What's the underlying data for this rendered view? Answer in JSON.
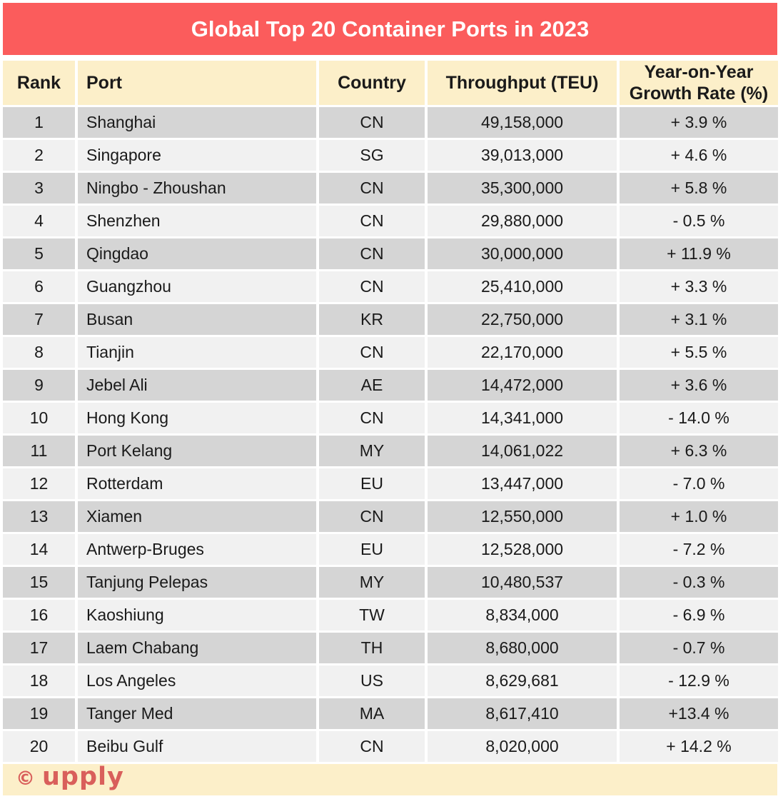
{
  "banner": {
    "title": "Global Top 20 Container Ports in 2023"
  },
  "table": {
    "header": {
      "rank": "Rank",
      "port": "Port",
      "country": "Country",
      "throughput": "Throughput (TEU)",
      "growth_line1": "Year-on-Year",
      "growth_line2": "Growth Rate (%)"
    },
    "rows": [
      {
        "rank": "1",
        "port": "Shanghai",
        "country": "CN",
        "throughput": "49,158,000",
        "growth": "+ 3.9 %"
      },
      {
        "rank": "2",
        "port": "Singapore",
        "country": "SG",
        "throughput": "39,013,000",
        "growth": "+ 4.6 %"
      },
      {
        "rank": "3",
        "port": "Ningbo - Zhoushan",
        "country": "CN",
        "throughput": "35,300,000",
        "growth": "+ 5.8 %"
      },
      {
        "rank": "4",
        "port": "Shenzhen",
        "country": "CN",
        "throughput": "29,880,000",
        "growth": "- 0.5 %"
      },
      {
        "rank": "5",
        "port": "Qingdao",
        "country": "CN",
        "throughput": "30,000,000",
        "growth": "+ 11.9 %"
      },
      {
        "rank": "6",
        "port": "Guangzhou",
        "country": "CN",
        "throughput": "25,410,000",
        "growth": "+ 3.3 %"
      },
      {
        "rank": "7",
        "port": "Busan",
        "country": "KR",
        "throughput": "22,750,000",
        "growth": "+ 3.1 %"
      },
      {
        "rank": "8",
        "port": "Tianjin",
        "country": "CN",
        "throughput": "22,170,000",
        "growth": "+ 5.5 %"
      },
      {
        "rank": "9",
        "port": "Jebel Ali",
        "country": "AE",
        "throughput": "14,472,000",
        "growth": "+ 3.6 %"
      },
      {
        "rank": "10",
        "port": "Hong Kong",
        "country": "CN",
        "throughput": "14,341,000",
        "growth": "- 14.0 %"
      },
      {
        "rank": "11",
        "port": "Port Kelang",
        "country": "MY",
        "throughput": "14,061,022",
        "growth": "+ 6.3 %"
      },
      {
        "rank": "12",
        "port": "Rotterdam",
        "country": "EU",
        "throughput": "13,447,000",
        "growth": "- 7.0 %"
      },
      {
        "rank": "13",
        "port": "Xiamen",
        "country": "CN",
        "throughput": "12,550,000",
        "growth": "+ 1.0 %"
      },
      {
        "rank": "14",
        "port": "Antwerp-Bruges",
        "country": "EU",
        "throughput": "12,528,000",
        "growth": "- 7.2 %"
      },
      {
        "rank": "15",
        "port": "Tanjung Pelepas",
        "country": "MY",
        "throughput": "10,480,537",
        "growth": "- 0.3 %"
      },
      {
        "rank": "16",
        "port": "Kaoshiung",
        "country": "TW",
        "throughput": "8,834,000",
        "growth": "- 6.9 %"
      },
      {
        "rank": "17",
        "port": "Laem Chabang",
        "country": "TH",
        "throughput": "8,680,000",
        "growth": "- 0.7 %"
      },
      {
        "rank": "18",
        "port": "Los Angeles",
        "country": "US",
        "throughput": "8,629,681",
        "growth": "- 12.9 %"
      },
      {
        "rank": "19",
        "port": "Tanger Med",
        "country": "MA",
        "throughput": "8,617,410",
        "growth": "+13.4 %"
      },
      {
        "rank": "20",
        "port": "Beibu Gulf",
        "country": "CN",
        "throughput": "8,020,000",
        "growth": "+ 14.2 %"
      }
    ]
  },
  "footer": {
    "copyright_symbol": "©",
    "brand": "upply"
  },
  "colors": {
    "banner": "#FB5C5C",
    "title_text": "#FFFFFF",
    "header_bg": "#FCEFC9",
    "row_odd": "#D5D5D5",
    "row_even": "#F1F1F1",
    "footer_bg": "#FCEFC9",
    "logo": "#D95F5B",
    "text": "#1A1A1A",
    "page_bg": "#FFFFFF"
  },
  "chart_data": {
    "type": "table",
    "title": "Global Top 20 Container Ports in 2023",
    "columns": [
      "Rank",
      "Port",
      "Country",
      "Throughput (TEU)",
      "Year-on-Year Growth Rate (%)"
    ],
    "rows": [
      [
        1,
        "Shanghai",
        "CN",
        49158000,
        3.9
      ],
      [
        2,
        "Singapore",
        "SG",
        39013000,
        4.6
      ],
      [
        3,
        "Ningbo - Zhoushan",
        "CN",
        35300000,
        5.8
      ],
      [
        4,
        "Shenzhen",
        "CN",
        29880000,
        -0.5
      ],
      [
        5,
        "Qingdao",
        "CN",
        30000000,
        11.9
      ],
      [
        6,
        "Guangzhou",
        "CN",
        25410000,
        3.3
      ],
      [
        7,
        "Busan",
        "KR",
        22750000,
        3.1
      ],
      [
        8,
        "Tianjin",
        "CN",
        22170000,
        5.5
      ],
      [
        9,
        "Jebel Ali",
        "AE",
        14472000,
        3.6
      ],
      [
        10,
        "Hong Kong",
        "CN",
        14341000,
        -14.0
      ],
      [
        11,
        "Port Kelang",
        "MY",
        14061022,
        6.3
      ],
      [
        12,
        "Rotterdam",
        "EU",
        13447000,
        -7.0
      ],
      [
        13,
        "Xiamen",
        "CN",
        12550000,
        1.0
      ],
      [
        14,
        "Antwerp-Bruges",
        "EU",
        12528000,
        -7.2
      ],
      [
        15,
        "Tanjung Pelepas",
        "MY",
        10480537,
        -0.3
      ],
      [
        16,
        "Kaoshiung",
        "TW",
        8834000,
        -6.9
      ],
      [
        17,
        "Laem Chabang",
        "TH",
        8680000,
        -0.7
      ],
      [
        18,
        "Los Angeles",
        "US",
        8629681,
        -12.9
      ],
      [
        19,
        "Tanger Med",
        "MA",
        8617410,
        13.4
      ],
      [
        20,
        "Beibu Gulf",
        "CN",
        8020000,
        14.2
      ]
    ]
  }
}
